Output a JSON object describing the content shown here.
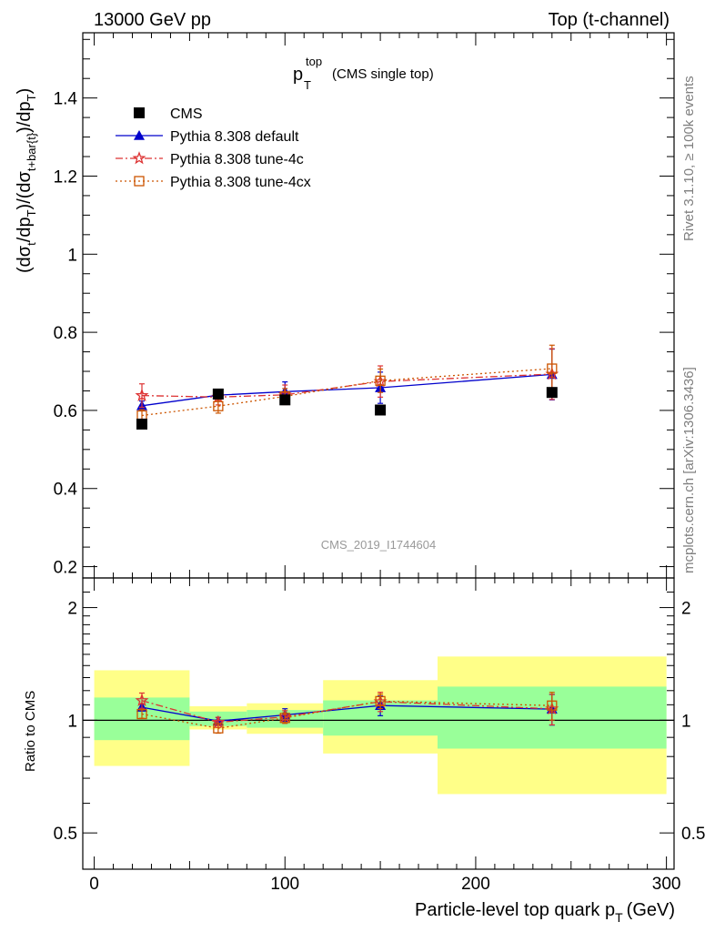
{
  "header": {
    "left": "13000 GeV pp",
    "right": "Top (t-channel)"
  },
  "side_labels": {
    "rivet": "Rivet 3.1.10, ≥ 100k events",
    "mcplots": "mcplots.cern.ch [arXiv:1306.3436]"
  },
  "watermark": "CMS_2019_I1744604",
  "chart_data": {
    "type": "scatter",
    "title": {
      "main": "p",
      "main_sub": "T",
      "main_sup": "top",
      "note": "(CMS single top)"
    },
    "xlabel": {
      "text": "Particle-level top quark p",
      "sub": "T",
      "unit": "(GeV)"
    },
    "ylabel": {
      "p1": "(dσ",
      "p1_sub": "t",
      "p2": "/dp",
      "p2_sub": "T",
      "p3": ")/(dσ",
      "p3_sub": "t+bar{t}",
      "p4": ")/dp",
      "p4_sub": "T",
      "p5": ")"
    },
    "ratio_ylabel": "Ratio to CMS",
    "xlim": [
      -6,
      304
    ],
    "ylim_main": [
      0.171,
      1.567
    ],
    "ylim_ratio": [
      0.4,
      2.4
    ],
    "ratio_log": true,
    "x_ticks": [
      0,
      100,
      200,
      300
    ],
    "x_tick_labels": [
      "0",
      "100",
      "200",
      "300"
    ],
    "y_ticks_main": [
      0.2,
      0.4,
      0.6,
      0.8,
      1.0,
      1.2,
      1.4
    ],
    "y_tick_labels_main": [
      "0.2",
      "0.4",
      "0.6",
      "0.8",
      "1",
      "1.2",
      "1.4"
    ],
    "y_ticks_ratio": [
      0.5,
      1,
      2
    ],
    "y_tick_labels_ratio": [
      "0.5",
      "1",
      "2"
    ],
    "bins": [
      {
        "lo": 0,
        "hi": 50,
        "x": 25,
        "cms": 0.565,
        "band_inner": [
          0.885,
          1.15
        ],
        "band_outer": [
          0.755,
          1.36
        ]
      },
      {
        "lo": 50,
        "hi": 80,
        "x": 65,
        "cms": 0.642,
        "band_inner": [
          0.965,
          1.055
        ],
        "band_outer": [
          0.945,
          1.09
        ]
      },
      {
        "lo": 80,
        "hi": 120,
        "x": 100,
        "cms": 0.627,
        "band_inner": [
          0.955,
          1.065
        ],
        "band_outer": [
          0.92,
          1.11
        ]
      },
      {
        "lo": 120,
        "hi": 180,
        "x": 150,
        "cms": 0.601,
        "band_inner": [
          0.91,
          1.13
        ],
        "band_outer": [
          0.815,
          1.28
        ]
      },
      {
        "lo": 180,
        "hi": 300,
        "x": 240,
        "cms": 0.646,
        "band_inner": [
          0.84,
          1.23
        ],
        "band_outer": [
          0.635,
          1.48
        ]
      }
    ],
    "series": [
      {
        "name": "CMS",
        "color": "#000000",
        "marker": "square",
        "x": [
          25,
          65,
          100,
          150,
          240
        ],
        "y": [
          0.565,
          0.642,
          0.627,
          0.601,
          0.646
        ]
      },
      {
        "name": "Pythia 8.308 default",
        "color": "#0000cc",
        "marker": "triangle",
        "line": "solid",
        "x": [
          25,
          65,
          100,
          150,
          240
        ],
        "y": [
          0.612,
          0.639,
          0.648,
          0.658,
          0.692
        ],
        "yerr": [
          0.012,
          0.014,
          0.025,
          0.04,
          0.065
        ]
      },
      {
        "name": "Pythia 8.308 tune-4c",
        "color": "#dd3333",
        "marker": "star",
        "line": "dashdot",
        "x": [
          25,
          65,
          100,
          150,
          240
        ],
        "y": [
          0.638,
          0.634,
          0.64,
          0.674,
          0.693
        ],
        "yerr": [
          0.03,
          0.02,
          0.025,
          0.04,
          0.065
        ]
      },
      {
        "name": "Pythia 8.308 tune-4cx",
        "color": "#cc5500",
        "marker": "open-square",
        "line": "dotted",
        "x": [
          25,
          65,
          100,
          150,
          240
        ],
        "y": [
          0.587,
          0.611,
          0.636,
          0.676,
          0.707
        ],
        "yerr": [
          0.015,
          0.018,
          0.02,
          0.03,
          0.06
        ]
      }
    ],
    "band_colors": {
      "inner": "#99ff99",
      "outer": "#ffff88"
    },
    "legend_placement": "top-left"
  }
}
